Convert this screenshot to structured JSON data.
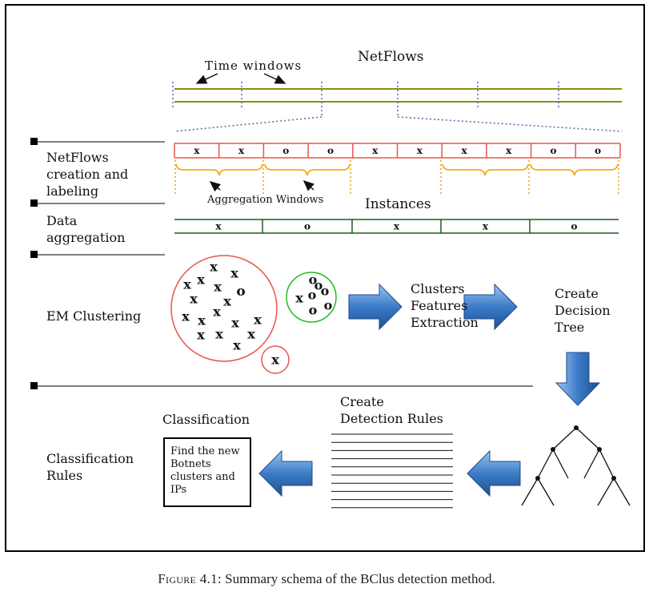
{
  "header": {
    "netflows": "NetFlows",
    "time_windows": "Time windows",
    "aggregation_windows": "Aggregation Windows",
    "instances": "Instances"
  },
  "stages": {
    "netflows_creation": [
      "NetFlows",
      "creation and",
      "labeling"
    ],
    "data_aggregation": [
      "Data",
      "aggregation"
    ],
    "em_clustering": "EM Clustering",
    "classification_rules": [
      "Classification",
      "Rules"
    ]
  },
  "flow_labels": [
    "x",
    "x",
    "o",
    "o",
    "x",
    "x",
    "x",
    "x",
    "o",
    "o"
  ],
  "instance_labels": [
    "x",
    "o",
    "x",
    "x",
    "o"
  ],
  "cluster_markers": {
    "big": [
      "x",
      "x",
      "x",
      "x",
      "o",
      "x",
      "x",
      "x",
      "x",
      "x",
      "x",
      "x",
      "x",
      "x",
      "x",
      "x",
      "x"
    ],
    "green": [
      "o",
      "x",
      "o",
      "o",
      "o",
      "o",
      "o"
    ],
    "small": [
      "x"
    ]
  },
  "steps": {
    "clusters": [
      "Clusters",
      "Features",
      "Extraction"
    ],
    "decision_tree": [
      "Create",
      "Decision",
      "Tree"
    ],
    "detection_rules": [
      "Create",
      "Detection Rules"
    ],
    "classification": "Classification",
    "find_box": [
      "Find the new",
      "Botnets",
      "clusters and",
      "IPs"
    ]
  },
  "caption": {
    "figure": "Figure 4.1:",
    "text": " Summary schema of the BClus detection method."
  },
  "colors": {
    "olive": "#8b8b1a",
    "red": "#e8564f",
    "dark_red": "#a31515",
    "green": "#22bb22",
    "dark_green": "#1f5a1f",
    "orange": "#f0a000",
    "arrow_blue": "#3a78c2",
    "dotted": "#6a6aa8"
  }
}
